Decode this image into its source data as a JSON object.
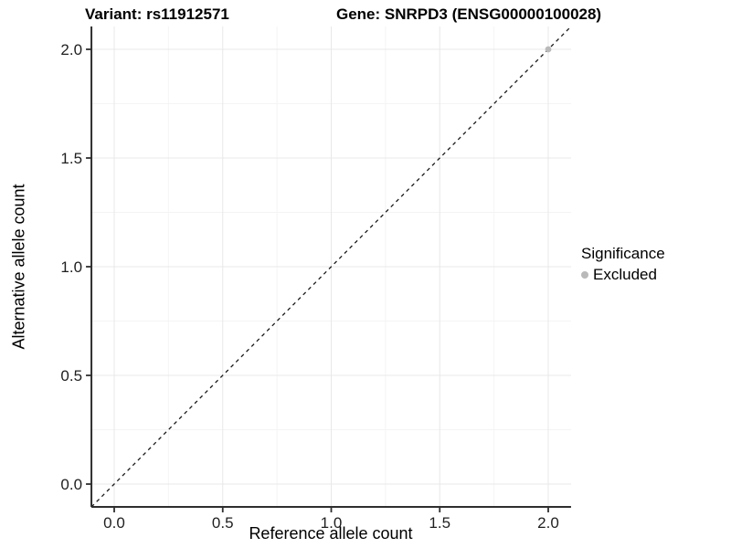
{
  "chart_data": {
    "type": "scatter",
    "title_left": "Variant: rs11912571",
    "title_right": "Gene: SNRPD3 (ENSG00000100028)",
    "xlabel": "Reference allele count",
    "ylabel": "Alternative allele count",
    "xlim": [
      -0.105,
      2.105
    ],
    "ylim": [
      -0.105,
      2.105
    ],
    "x_ticks": [
      0.0,
      0.5,
      1.0,
      1.5,
      2.0
    ],
    "x_tick_labels": [
      "0.0",
      "0.5",
      "1.0",
      "1.5",
      "2.0"
    ],
    "y_ticks": [
      0.0,
      0.5,
      1.0,
      1.5,
      2.0
    ],
    "y_tick_labels": [
      "0.0",
      "0.5",
      "1.0",
      "1.5",
      "2.0"
    ],
    "x_minor_ticks": [
      0.25,
      0.75,
      1.25,
      1.75
    ],
    "y_minor_ticks": [
      0.25,
      0.75,
      1.25,
      1.75
    ],
    "grid": true,
    "reference_line": {
      "style": "dashed",
      "slope": 1,
      "intercept": 0
    },
    "series": [
      {
        "name": "Excluded",
        "points": [
          {
            "x": 2.0,
            "y": 2.0
          }
        ]
      }
    ],
    "legend": {
      "title": "Significance",
      "position": "right",
      "items": [
        {
          "label": "Excluded"
        }
      ]
    }
  },
  "colors": {
    "background": "#ffffff",
    "grid_major": "#e8e8e8",
    "grid_minor": "#f4f4f4",
    "axis_line": "#2e2e2e",
    "tick_mark": "#2e2e2e",
    "tick_label": "#1f1f1f",
    "reference_line": "#1a1a1a",
    "excluded_point": "#b9b9b9"
  }
}
